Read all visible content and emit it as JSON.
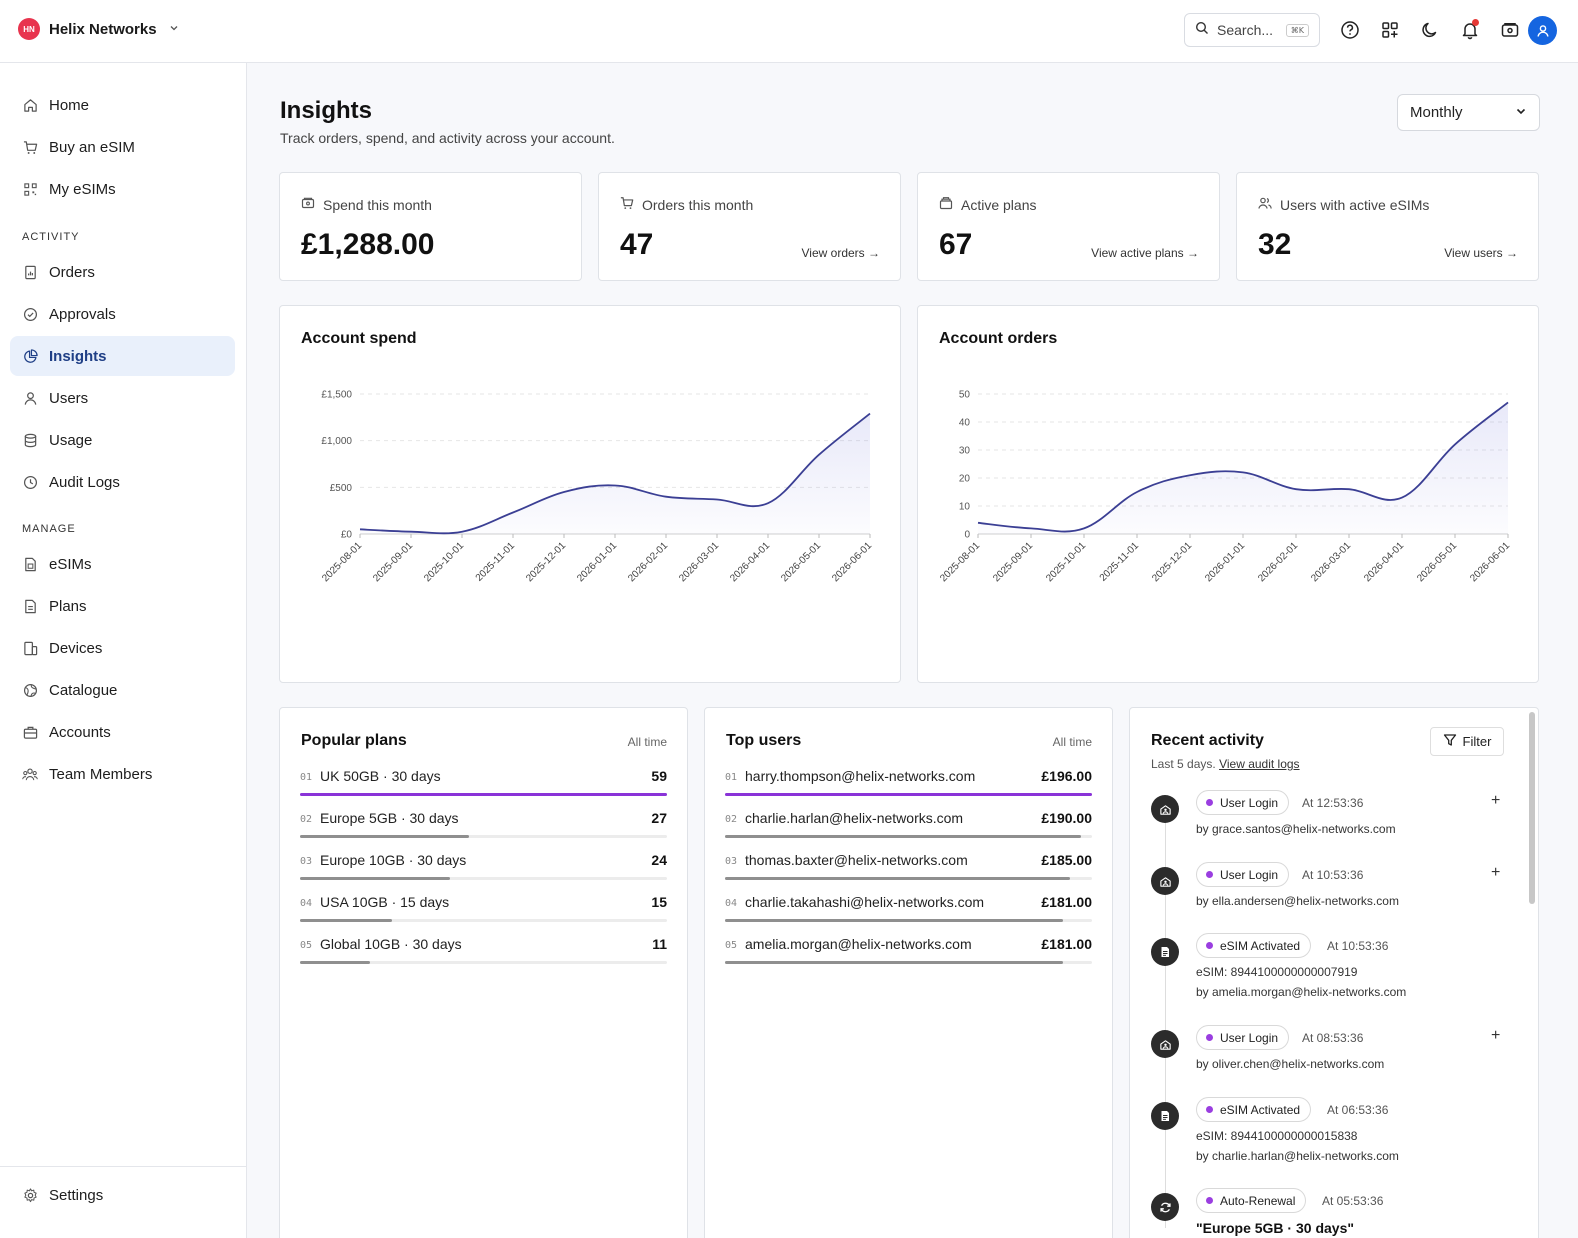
{
  "topbar": {
    "org_initials": "HN",
    "org_name": "Helix Networks",
    "search_placeholder": "Search...",
    "search_shortcut": "⌘K"
  },
  "sidebar": {
    "items": [
      {
        "label": "Home",
        "icon": "home-icon"
      },
      {
        "label": "Buy an eSIM",
        "icon": "cart-icon"
      },
      {
        "label": "My eSIMs",
        "icon": "qr-icon"
      }
    ],
    "activity_header": "ACTIVITY",
    "activity_items": [
      {
        "label": "Orders",
        "icon": "orders-icon"
      },
      {
        "label": "Approvals",
        "icon": "check-circle-icon"
      },
      {
        "label": "Insights",
        "icon": "pie-chart-icon",
        "active": true
      },
      {
        "label": "Users",
        "icon": "user-icon"
      },
      {
        "label": "Usage",
        "icon": "database-icon"
      },
      {
        "label": "Audit Logs",
        "icon": "clock-icon"
      }
    ],
    "manage_header": "MANAGE",
    "manage_items": [
      {
        "label": "eSIMs",
        "icon": "sim-icon"
      },
      {
        "label": "Plans",
        "icon": "document-icon"
      },
      {
        "label": "Devices",
        "icon": "devices-icon"
      },
      {
        "label": "Catalogue",
        "icon": "globe-icon"
      },
      {
        "label": "Accounts",
        "icon": "briefcase-icon"
      },
      {
        "label": "Team Members",
        "icon": "team-icon"
      }
    ],
    "settings_label": "Settings"
  },
  "page": {
    "title": "Insights",
    "subtitle": "Track orders, spend, and activity across your account.",
    "period": "Monthly"
  },
  "stats": [
    {
      "label": "Spend this month",
      "value": "£1,288.00",
      "link": ""
    },
    {
      "label": "Orders this month",
      "value": "47",
      "link": "View orders →"
    },
    {
      "label": "Active plans",
      "value": "67",
      "link": "View active plans →"
    },
    {
      "label": "Users with active eSIMs",
      "value": "32",
      "link": "View users →"
    }
  ],
  "chart_data": [
    {
      "type": "area",
      "title": "Account spend",
      "categories": [
        "2025-08-01",
        "2025-09-01",
        "2025-10-01",
        "2025-11-01",
        "2025-12-01",
        "2026-01-01",
        "2026-02-01",
        "2026-03-01",
        "2026-04-01",
        "2026-05-01",
        "2026-06-01"
      ],
      "values": [
        50,
        25,
        25,
        230,
        450,
        520,
        400,
        370,
        330,
        850,
        1290
      ],
      "yticks": [
        "£0",
        "£500",
        "£1,000",
        "£1,500"
      ],
      "ylim": [
        0,
        1500
      ],
      "grid": true,
      "color": "#3b3f94"
    },
    {
      "type": "area",
      "title": "Account orders",
      "categories": [
        "2025-08-01",
        "2025-09-01",
        "2025-10-01",
        "2025-11-01",
        "2025-12-01",
        "2026-01-01",
        "2026-02-01",
        "2026-03-01",
        "2026-04-01",
        "2026-05-01",
        "2026-06-01"
      ],
      "values": [
        4,
        2,
        2,
        15,
        21,
        22,
        16,
        16,
        13,
        32,
        47
      ],
      "yticks": [
        "0",
        "10",
        "20",
        "30",
        "40",
        "50"
      ],
      "ylim": [
        0,
        50
      ],
      "grid": true,
      "color": "#3b3f94"
    }
  ],
  "popular_plans": {
    "title": "Popular plans",
    "meta": "All time",
    "rows": [
      {
        "num": "01",
        "name": "UK 50GB · 30 days",
        "value": "59",
        "share": 1.0
      },
      {
        "num": "02",
        "name": "Europe 5GB · 30 days",
        "value": "27",
        "share": 0.46
      },
      {
        "num": "03",
        "name": "Europe 10GB · 30 days",
        "value": "24",
        "share": 0.41
      },
      {
        "num": "04",
        "name": "USA 10GB · 15 days",
        "value": "15",
        "share": 0.25
      },
      {
        "num": "05",
        "name": "Global 10GB · 30 days",
        "value": "11",
        "share": 0.19
      }
    ]
  },
  "top_users": {
    "title": "Top users",
    "meta": "All time",
    "rows": [
      {
        "num": "01",
        "name": "harry.thompson@helix-networks.com",
        "value": "£196.00",
        "share": 1.0
      },
      {
        "num": "02",
        "name": "charlie.harlan@helix-networks.com",
        "value": "£190.00",
        "share": 0.97
      },
      {
        "num": "03",
        "name": "thomas.baxter@helix-networks.com",
        "value": "£185.00",
        "share": 0.94
      },
      {
        "num": "04",
        "name": "charlie.takahashi@helix-networks.com",
        "value": "£181.00",
        "share": 0.92
      },
      {
        "num": "05",
        "name": "amelia.morgan@helix-networks.com",
        "value": "£181.00",
        "share": 0.92
      }
    ]
  },
  "activity": {
    "title": "Recent activity",
    "filter_label": "Filter",
    "sub_text": "Last 5 days.",
    "sub_link": "View audit logs",
    "items": [
      {
        "type": "User Login",
        "time": "At 12:53:36",
        "line1": "by grace.santos@helix-networks.com",
        "line2": "",
        "icon": "login-icon",
        "expandable": true
      },
      {
        "type": "User Login",
        "time": "At 10:53:36",
        "line1": "by ella.andersen@helix-networks.com",
        "line2": "",
        "icon": "login-icon",
        "expandable": true
      },
      {
        "type": "eSIM Activated",
        "time": "At 10:53:36",
        "line1": "eSIM: 8944100000000007919",
        "line2": "by amelia.morgan@helix-networks.com",
        "icon": "sim-icon",
        "expandable": false
      },
      {
        "type": "User Login",
        "time": "At 08:53:36",
        "line1": "by oliver.chen@helix-networks.com",
        "line2": "",
        "icon": "login-icon",
        "expandable": true
      },
      {
        "type": "eSIM Activated",
        "time": "At 06:53:36",
        "line1": "eSIM: 8944100000000015838",
        "line2": "by charlie.harlan@helix-networks.com",
        "icon": "sim-icon",
        "expandable": false
      },
      {
        "type": "Auto-Renewal",
        "time": "At 05:53:36",
        "line1": "\"Europe 5GB · 30 days\"",
        "line2": "",
        "icon": "renew-icon",
        "expandable": false
      }
    ]
  }
}
